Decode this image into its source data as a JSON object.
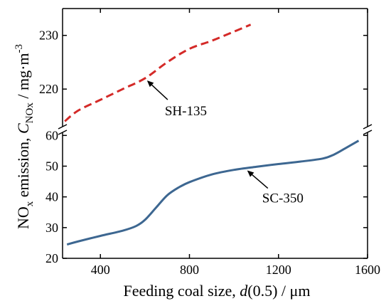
{
  "chart_data": {
    "type": "line",
    "title": "",
    "xlabel": {
      "pre": "Feeding coal size, ",
      "var": "d",
      "post": "(0.5) / μm"
    },
    "ylabel": {
      "pre": "NO",
      "sub": "x",
      "mid": " emission, ",
      "var": "C",
      "varsub": "NOx",
      "unit": " / mg·m",
      "sup": "-3"
    },
    "xlim": [
      230,
      1600
    ],
    "x_ticks": [
      "400",
      "800",
      "1200",
      "1600"
    ],
    "broken_y_axis": true,
    "upper_panel": {
      "ylim": [
        213,
        235
      ],
      "y_ticks": [
        "220",
        "230"
      ]
    },
    "lower_panel": {
      "ylim": [
        20,
        61
      ],
      "y_ticks": [
        "20",
        "30",
        "40",
        "50",
        "60"
      ]
    },
    "series": [
      {
        "name": "SH-135",
        "panel": "upper",
        "color": "#d42a28",
        "dash": true,
        "x": [
          240,
          300,
          400,
          500,
          600,
          700,
          800,
          900,
          1000,
          1075
        ],
        "y": [
          214.0,
          216.0,
          218.0,
          220.0,
          222.0,
          225.0,
          227.5,
          229.0,
          230.7,
          232.0
        ]
      },
      {
        "name": "SC-350",
        "panel": "lower",
        "color": "#3d6791",
        "dash": false,
        "x": [
          250,
          300,
          400,
          500,
          560,
          600,
          650,
          700,
          750,
          800,
          900,
          1000,
          1100,
          1200,
          1300,
          1400,
          1450,
          1500,
          1560
        ],
        "y": [
          24.5,
          25.5,
          27.3,
          29.0,
          30.5,
          32.5,
          36.5,
          40.5,
          43.0,
          44.8,
          47.3,
          48.8,
          49.8,
          50.7,
          51.5,
          52.5,
          53.8,
          55.8,
          58.3
        ]
      }
    ],
    "annotations": [
      {
        "text": "SH-135",
        "series": "SH-135",
        "x": 600
      },
      {
        "text": "SC-350",
        "series": "SC-350",
        "x": 1050
      }
    ]
  }
}
